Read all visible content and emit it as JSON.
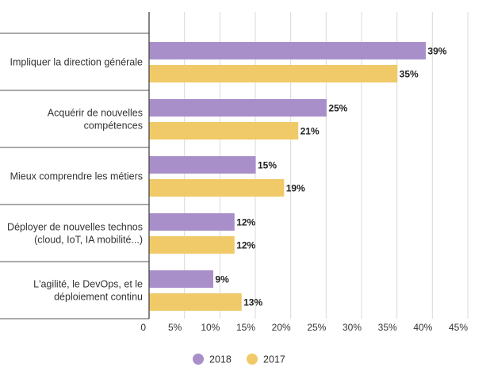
{
  "chart_data": {
    "type": "bar",
    "orientation": "horizontal",
    "categories": [
      [
        "Impliquer la direction générale"
      ],
      [
        "Acquérir de nouvelles",
        "compétences"
      ],
      [
        "Mieux comprendre les métiers"
      ],
      [
        "Déployer de nouvelles technos",
        "(cloud, IoT, IA mobilité...)"
      ],
      [
        "L'agilité, le DevOps, et le",
        "déploiement continu"
      ]
    ],
    "series": [
      {
        "name": "2018",
        "color": "#a98fca",
        "values": [
          39,
          25,
          15,
          12,
          9
        ]
      },
      {
        "name": "2017",
        "color": "#f0ca68",
        "values": [
          35,
          21,
          19,
          12,
          13
        ]
      }
    ],
    "value_suffix": "%",
    "xlim": [
      0,
      45
    ],
    "x_ticks": [
      0,
      5,
      10,
      15,
      20,
      25,
      30,
      35,
      40,
      45
    ],
    "x_tick_labels": [
      "0",
      "5%",
      "10%",
      "15%",
      "20%",
      "25%",
      "30%",
      "35%",
      "40%",
      "45%"
    ],
    "grid": true,
    "legend": "bottom-center",
    "title": "",
    "xlabel": "",
    "ylabel": ""
  }
}
